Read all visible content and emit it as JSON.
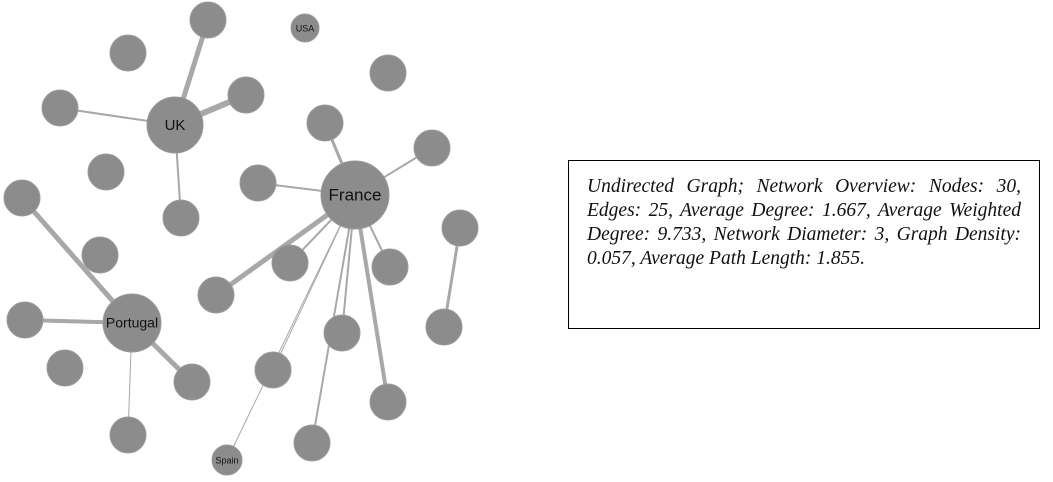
{
  "nodes": {
    "usa": "USA",
    "uk": "UK",
    "france": "France",
    "portugal": "Portugal",
    "spain": "Spain"
  },
  "caption": "Undirected Graph; Network Overview: Nodes: 30, Edges: 25, Average Degree: 1.667, Average Weighted Degree: 9.733, Network Diameter: 3, Graph Density: 0.057, Average Path Length: 1.855."
}
